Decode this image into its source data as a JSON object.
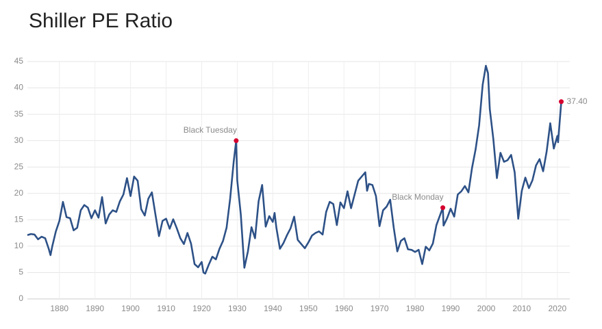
{
  "chart_data": {
    "type": "line",
    "title": "Shiller PE Ratio",
    "x": [
      1871,
      1872,
      1873,
      1874,
      1875,
      1876,
      1877,
      1877.5,
      1878,
      1879,
      1880,
      1881,
      1882,
      1883,
      1884,
      1885,
      1886,
      1887,
      1888,
      1889,
      1890,
      1891,
      1892,
      1893,
      1894,
      1895,
      1896,
      1897,
      1898,
      1899,
      1900,
      1901,
      1902,
      1903,
      1904,
      1905,
      1906,
      1907,
      1908,
      1909,
      1910,
      1911,
      1912,
      1913,
      1914,
      1915,
      1916,
      1917,
      1918,
      1919,
      1920,
      1920.5,
      1921,
      1922,
      1923,
      1924,
      1925,
      1926,
      1927,
      1928,
      1929,
      1929.7,
      1930,
      1931,
      1932,
      1933,
      1934,
      1935,
      1936,
      1937,
      1938,
      1939,
      1940,
      1940.5,
      1941,
      1942,
      1943,
      1944,
      1945,
      1946,
      1947,
      1948,
      1949,
      1950,
      1951,
      1952,
      1953,
      1954,
      1955,
      1956,
      1957,
      1958,
      1959,
      1960,
      1961,
      1962,
      1963,
      1964,
      1965,
      1966,
      1966.5,
      1967,
      1968,
      1969,
      1970,
      1971,
      1972,
      1973,
      1974,
      1975,
      1976,
      1977,
      1978,
      1979,
      1980,
      1981,
      1982,
      1983,
      1984,
      1985,
      1986,
      1987.8,
      1988,
      1989,
      1990,
      1991,
      1992,
      1993,
      1994,
      1995,
      1996,
      1997,
      1998,
      1999,
      1999.9,
      2000.5,
      2001,
      2002,
      2003,
      2004,
      2005,
      2006,
      2007,
      2008,
      2009,
      2010,
      2011,
      2012,
      2013,
      2014,
      2015,
      2016,
      2017,
      2018,
      2019,
      2020,
      2020.2,
      2021.1
    ],
    "values": [
      12.1,
      12.3,
      12.2,
      11.3,
      11.8,
      11.5,
      9.5,
      8.3,
      10.0,
      12.8,
      14.8,
      18.4,
      15.5,
      15.3,
      13.0,
      13.5,
      16.8,
      17.8,
      17.3,
      15.3,
      16.8,
      15.4,
      19.3,
      14.3,
      16.0,
      16.8,
      16.5,
      18.5,
      19.8,
      22.9,
      19.5,
      23.2,
      22.4,
      17.0,
      15.8,
      19.0,
      20.2,
      16.0,
      11.9,
      14.8,
      15.2,
      13.3,
      15.1,
      13.4,
      11.5,
      10.4,
      12.5,
      10.5,
      6.6,
      6.0,
      7.0,
      5.0,
      4.8,
      6.5,
      8.0,
      7.5,
      9.5,
      11.0,
      13.5,
      19.0,
      26.0,
      30.0,
      22.5,
      16.0,
      5.9,
      9.0,
      13.6,
      11.5,
      18.5,
      21.6,
      13.7,
      15.7,
      14.6,
      16.3,
      13.5,
      9.5,
      10.6,
      12.1,
      13.4,
      15.6,
      11.2,
      10.4,
      9.6,
      10.7,
      12.0,
      12.5,
      12.8,
      12.2,
      16.5,
      18.4,
      18.0,
      14.0,
      18.3,
      17.2,
      20.4,
      17.2,
      19.8,
      22.4,
      23.2,
      24.0,
      20.5,
      21.8,
      21.6,
      19.5,
      13.8,
      16.8,
      17.5,
      18.8,
      13.5,
      9.0,
      11.0,
      11.5,
      9.4,
      9.3,
      8.9,
      9.3,
      6.6,
      9.9,
      9.2,
      10.5,
      14.0,
      17.3,
      13.9,
      15.3,
      17.1,
      15.6,
      19.8,
      20.4,
      21.4,
      20.2,
      24.8,
      28.3,
      32.9,
      40.6,
      44.2,
      42.8,
      36.0,
      30.3,
      22.9,
      27.7,
      26.0,
      26.3,
      27.3,
      24.0,
      15.2,
      20.5,
      23.0,
      21.0,
      22.5,
      25.3,
      26.5,
      24.2,
      28.0,
      33.3,
      28.5,
      30.9,
      29.7,
      37.4
    ],
    "color": "#2d5187",
    "xlim": [
      1871,
      2023.5
    ],
    "xticks": [
      1880,
      1890,
      1900,
      1910,
      1920,
      1930,
      1940,
      1950,
      1960,
      1970,
      1980,
      1990,
      2000,
      2010,
      2020
    ],
    "ylim": [
      0,
      45
    ],
    "yticks": [
      0,
      5,
      10,
      15,
      20,
      25,
      30,
      35,
      40,
      45
    ],
    "grid": true,
    "annotations": [
      {
        "text": "Black Tuesday",
        "x": 1929.7,
        "y": 30.0,
        "color": "#d6002f"
      },
      {
        "text": "Black Monday",
        "x": 1987.8,
        "y": 17.3,
        "color": "#d6002f"
      },
      {
        "text": "37.40",
        "x": 2021.1,
        "y": 37.4,
        "color": "#d6002f"
      }
    ]
  }
}
